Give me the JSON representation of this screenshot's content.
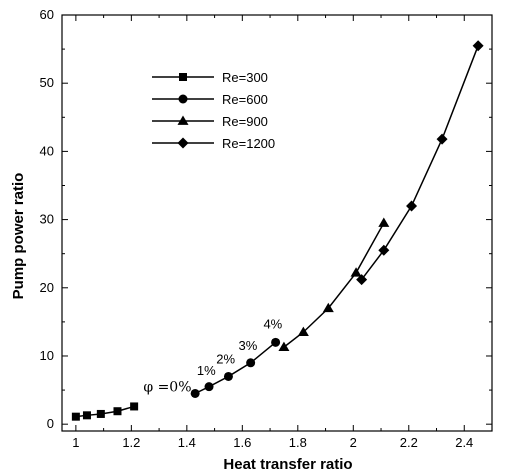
{
  "chart_data": {
    "type": "line",
    "title": "",
    "xlabel": "Heat transfer ratio",
    "ylabel": "Pump power ratio",
    "xlim": [
      0.95,
      2.5
    ],
    "ylim": [
      -1,
      60
    ],
    "xticks": [
      "1",
      "1.2",
      "1.4",
      "1.6",
      "1.8",
      "2",
      "2.2",
      "2.4"
    ],
    "yticks": [
      "0",
      "10",
      "20",
      "30",
      "40",
      "50",
      "60"
    ],
    "grid": false,
    "legend_position": "top-left",
    "series": [
      {
        "name": "Re=300",
        "marker": "square",
        "x": [
          1.0,
          1.04,
          1.09,
          1.15,
          1.21
        ],
        "y": [
          1.1,
          1.3,
          1.5,
          1.9,
          2.6
        ]
      },
      {
        "name": "Re=600",
        "marker": "circle",
        "x": [
          1.43,
          1.48,
          1.55,
          1.63,
          1.72
        ],
        "y": [
          4.5,
          5.5,
          7.0,
          9.0,
          12.0
        ]
      },
      {
        "name": "Re=900",
        "marker": "triangle",
        "x": [
          1.75,
          1.82,
          1.91,
          2.01,
          2.11
        ],
        "y": [
          11.3,
          13.5,
          17.0,
          22.2,
          29.5
        ]
      },
      {
        "name": "Re=1200",
        "marker": "diamond",
        "x": [
          2.03,
          2.11,
          2.21,
          2.32,
          2.45
        ],
        "y": [
          21.2,
          25.5,
          32.0,
          41.8,
          55.5
        ]
      }
    ],
    "annotations": [
      {
        "text": "φ =0%",
        "x": 1.33,
        "y": 4.8
      },
      {
        "text": "1%",
        "x": 1.47,
        "y": 7.2
      },
      {
        "text": "2%",
        "x": 1.54,
        "y": 8.9
      },
      {
        "text": "3%",
        "x": 1.62,
        "y": 10.9
      },
      {
        "text": "4%",
        "x": 1.71,
        "y": 14.0
      }
    ]
  }
}
